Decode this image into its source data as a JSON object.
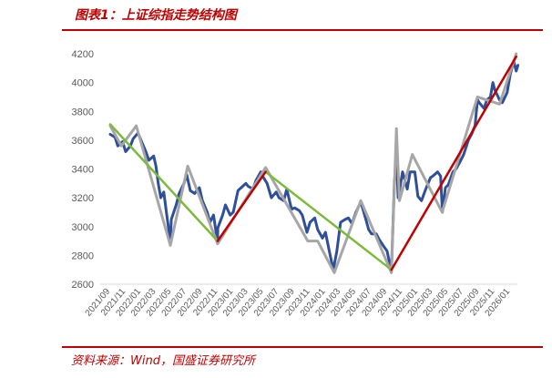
{
  "title": "图表1：上证综指走势结构图",
  "source": "资料来源：Wind，国盛证券研究所",
  "colors": {
    "index": "#2f4f9a",
    "structure": "#a6a6a6",
    "down_trend": "#7cba3b",
    "up_trend": "#c00000",
    "axis": "#d9d9d9",
    "title": "#c00000"
  },
  "chart_data": {
    "type": "line",
    "title": "",
    "xlabel": "",
    "ylabel": "",
    "ylim": [
      2600,
      4200
    ],
    "yticks": [
      2600,
      2800,
      3000,
      3200,
      3400,
      3600,
      3800,
      4000,
      4200
    ],
    "xlim": [
      "2021-09",
      "2026-02"
    ],
    "xticks": [
      "2021/09",
      "2021/11",
      "2022/01",
      "2022/03",
      "2022/05",
      "2022/07",
      "2022/09",
      "2022/11",
      "2023/01",
      "2023/03",
      "2023/05",
      "2023/07",
      "2023/09",
      "2023/11",
      "2024/01",
      "2024/03",
      "2024/05",
      "2024/07",
      "2024/09",
      "2024/11",
      "2025/01",
      "2025/03",
      "2025/05",
      "2025/07",
      "2025/09",
      "2025/11",
      "2026/01"
    ],
    "series": [
      {
        "role": "index",
        "points": [
          [
            "2021-09",
            3640
          ],
          [
            "2021-09-20",
            3620
          ],
          [
            "2021-10",
            3560
          ],
          [
            "2021-10-20",
            3590
          ],
          [
            "2021-11",
            3520
          ],
          [
            "2021-11-20",
            3560
          ],
          [
            "2021-12",
            3610
          ],
          [
            "2021-12-20",
            3650
          ],
          [
            "2022-01",
            3600
          ],
          [
            "2022-01-20",
            3520
          ],
          [
            "2022-02",
            3460
          ],
          [
            "2022-02-20",
            3490
          ],
          [
            "2022-03",
            3420
          ],
          [
            "2022-03-10",
            3300
          ],
          [
            "2022-03-20",
            3200
          ],
          [
            "2022-04",
            3240
          ],
          [
            "2022-04-15",
            3050
          ],
          [
            "2022-04-27",
            2900
          ],
          [
            "2022-05",
            3050
          ],
          [
            "2022-05-20",
            3150
          ],
          [
            "2022-06",
            3230
          ],
          [
            "2022-06-20",
            3300
          ],
          [
            "2022-07",
            3360
          ],
          [
            "2022-07-15",
            3250
          ],
          [
            "2022-08",
            3230
          ],
          [
            "2022-08-20",
            3270
          ],
          [
            "2022-09",
            3180
          ],
          [
            "2022-09-20",
            3100
          ],
          [
            "2022-10",
            3030
          ],
          [
            "2022-10-15",
            3080
          ],
          [
            "2022-10-31",
            2890
          ],
          [
            "2022-11",
            2990
          ],
          [
            "2022-11-20",
            3080
          ],
          [
            "2022-12",
            3150
          ],
          [
            "2022-12-20",
            3080
          ],
          [
            "2023-01",
            3100
          ],
          [
            "2023-01-20",
            3250
          ],
          [
            "2023-02",
            3270
          ],
          [
            "2023-02-20",
            3300
          ],
          [
            "2023-03",
            3280
          ],
          [
            "2023-03-20",
            3260
          ],
          [
            "2023-04",
            3320
          ],
          [
            "2023-04-20",
            3380
          ],
          [
            "2023-05",
            3340
          ],
          [
            "2023-05-15",
            3300
          ],
          [
            "2023-06",
            3200
          ],
          [
            "2023-06-20",
            3240
          ],
          [
            "2023-07",
            3200
          ],
          [
            "2023-07-20",
            3180
          ],
          [
            "2023-08",
            3260
          ],
          [
            "2023-08-20",
            3120
          ],
          [
            "2023-09",
            3130
          ],
          [
            "2023-09-20",
            3110
          ],
          [
            "2023-10",
            3080
          ],
          [
            "2023-10-20",
            2960
          ],
          [
            "2023-11",
            3030
          ],
          [
            "2023-11-20",
            3060
          ],
          [
            "2023-12",
            2980
          ],
          [
            "2023-12-20",
            2920
          ],
          [
            "2024-01",
            2960
          ],
          [
            "2024-01-20",
            2800
          ],
          [
            "2024-02",
            2700
          ],
          [
            "2024-02-15",
            2830
          ],
          [
            "2024-03",
            3030
          ],
          [
            "2024-03-20",
            3050
          ],
          [
            "2024-04",
            3060
          ],
          [
            "2024-04-15",
            3020
          ],
          [
            "2024-05",
            3100
          ],
          [
            "2024-05-20",
            3170
          ],
          [
            "2024-06",
            3100
          ],
          [
            "2024-06-20",
            2980
          ],
          [
            "2024-07",
            2950
          ],
          [
            "2024-07-20",
            2950
          ],
          [
            "2024-08",
            2910
          ],
          [
            "2024-08-20",
            2860
          ],
          [
            "2024-09",
            2830
          ],
          [
            "2024-09-18",
            2690
          ],
          [
            "2024-09-30",
            3310
          ],
          [
            "2024-10-08",
            3480
          ],
          [
            "2024-10-15",
            3200
          ],
          [
            "2024-10-25",
            3300
          ],
          [
            "2024-11",
            3380
          ],
          [
            "2024-11-20",
            3260
          ],
          [
            "2024-12",
            3380
          ],
          [
            "2024-12-20",
            3380
          ],
          [
            "2025-01",
            3210
          ],
          [
            "2025-01-15",
            3180
          ],
          [
            "2025-02",
            3260
          ],
          [
            "2025-02-20",
            3340
          ],
          [
            "2025-03",
            3350
          ],
          [
            "2025-03-20",
            3380
          ],
          [
            "2025-04",
            3350
          ],
          [
            "2025-04-08",
            3100
          ],
          [
            "2025-04-20",
            3270
          ],
          [
            "2025-05",
            3290
          ],
          [
            "2025-05-20",
            3380
          ],
          [
            "2025-06",
            3400
          ],
          [
            "2025-06-20",
            3460
          ],
          [
            "2025-07",
            3500
          ],
          [
            "2025-07-20",
            3600
          ],
          [
            "2025-08",
            3640
          ],
          [
            "2025-08-15",
            3700
          ],
          [
            "2025-08-25",
            3880
          ],
          [
            "2025-09",
            3860
          ],
          [
            "2025-09-20",
            3820
          ],
          [
            "2025-10",
            3880
          ],
          [
            "2025-10-15",
            3900
          ],
          [
            "2025-10-25",
            4000
          ],
          [
            "2025-11",
            3950
          ],
          [
            "2025-11-20",
            3880
          ],
          [
            "2025-12",
            3860
          ],
          [
            "2025-12-20",
            3930
          ],
          [
            "2026-01",
            4050
          ],
          [
            "2026-01-15",
            4150
          ],
          [
            "2026-01-25",
            4080
          ],
          [
            "2026-02",
            4120
          ]
        ]
      },
      {
        "role": "structure",
        "points": [
          [
            "2021-09",
            3700
          ],
          [
            "2021-10-15",
            3560
          ],
          [
            "2021-12-13",
            3700
          ],
          [
            "2022-04-27",
            2870
          ],
          [
            "2022-07-05",
            3420
          ],
          [
            "2022-10-31",
            2880
          ],
          [
            "2023-05-09",
            3410
          ],
          [
            "2023-10-23",
            2900
          ],
          [
            "2023-12",
            2900
          ],
          [
            "2024-02-05",
            2680
          ],
          [
            "2024-05-20",
            3180
          ],
          [
            "2024-09-18",
            2680
          ],
          [
            "2024-10-08",
            3680
          ],
          [
            "2024-10-20",
            3180
          ],
          [
            "2024-12-10",
            3500
          ],
          [
            "2025-04-07",
            3100
          ],
          [
            "2025-08-25",
            3900
          ],
          [
            "2025-11-20",
            3850
          ],
          [
            "2026-01-25",
            4200
          ]
        ]
      },
      {
        "role": "down_trend",
        "points": [
          [
            "2021-09",
            3710
          ],
          [
            "2022-10-31",
            2900
          ]
        ]
      },
      {
        "role": "up_trend",
        "points": [
          [
            "2022-10-31",
            2900
          ],
          [
            "2023-05-09",
            3380
          ]
        ]
      },
      {
        "role": "down_trend",
        "points": [
          [
            "2023-05-09",
            3380
          ],
          [
            "2024-09-18",
            2700
          ]
        ]
      },
      {
        "role": "up_trend",
        "points": [
          [
            "2024-09-18",
            2700
          ],
          [
            "2026-01-25",
            4180
          ]
        ]
      }
    ]
  }
}
